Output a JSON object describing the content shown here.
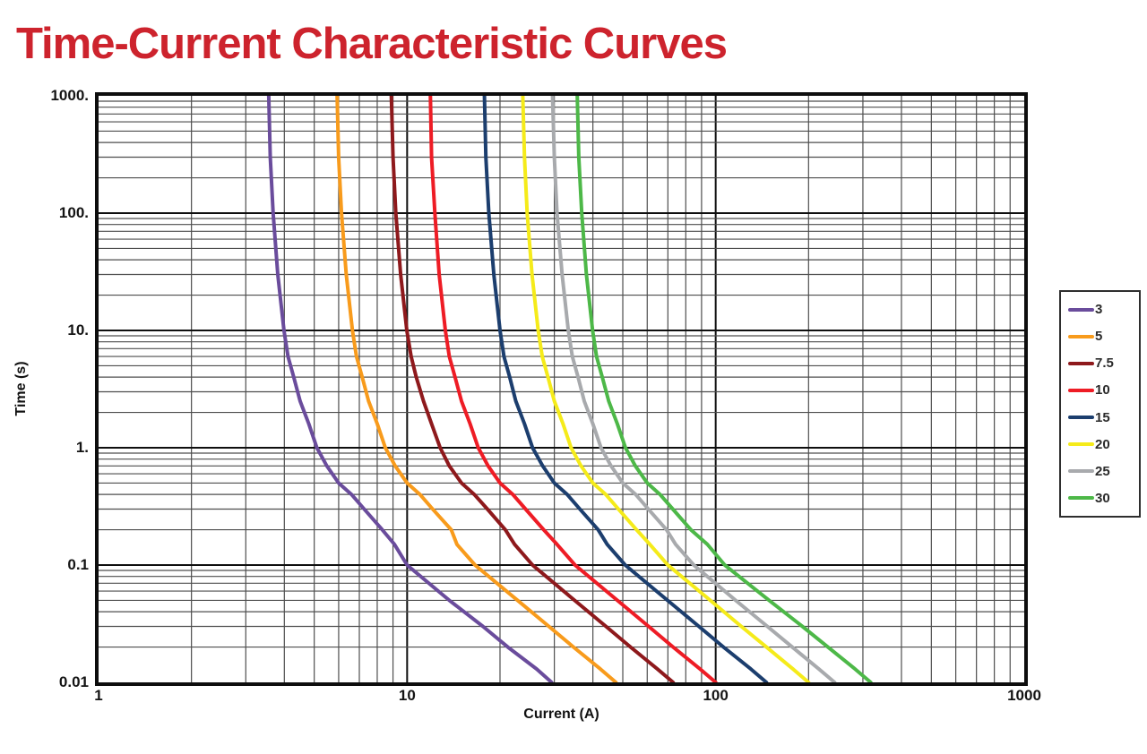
{
  "title": "Time-Current Characteristic Curves",
  "title_color": "#cd232d",
  "chart_data": {
    "type": "line",
    "title": "Time-Current Characteristic Curves",
    "xlabel": "Current (A)",
    "ylabel": "Time (s)",
    "x_scale": "log",
    "y_scale": "log",
    "xlim": [
      1,
      1000
    ],
    "ylim": [
      0.01,
      1000
    ],
    "grid": "log major+minor, both axes",
    "legend_position": "right",
    "x_ticks": [
      {
        "value": 1,
        "label": "1"
      },
      {
        "value": 10,
        "label": "10"
      },
      {
        "value": 100,
        "label": "100"
      },
      {
        "value": 1000,
        "label": "1000"
      }
    ],
    "y_ticks": [
      {
        "value": 1000,
        "label": "1000."
      },
      {
        "value": 100,
        "label": "100."
      },
      {
        "value": 10,
        "label": "10."
      },
      {
        "value": 1,
        "label": "1."
      },
      {
        "value": 0.1,
        "label": "0.1"
      },
      {
        "value": 0.01,
        "label": "0.01"
      }
    ],
    "series_note": "Breaker amp ratings; points are [current_A, time_s]",
    "series": [
      {
        "name": "3",
        "rating_amps": 3,
        "color": "#6a4c9c",
        "points": [
          [
            3.56,
            1000
          ],
          [
            3.6,
            300
          ],
          [
            3.68,
            100
          ],
          [
            3.81,
            30
          ],
          [
            3.99,
            10
          ],
          [
            4.11,
            6
          ],
          [
            4.29,
            4
          ],
          [
            4.5,
            2.5
          ],
          [
            4.8,
            1.6
          ],
          [
            5.1,
            1
          ],
          [
            5.49,
            0.7
          ],
          [
            6.0,
            0.5
          ],
          [
            6.6,
            0.4
          ],
          [
            7.26,
            0.3
          ],
          [
            8.31,
            0.2
          ],
          [
            9.1,
            0.15
          ],
          [
            10.0,
            0.1
          ],
          [
            13.7,
            0.05
          ],
          [
            17.6,
            0.03
          ],
          [
            21.2,
            0.02
          ],
          [
            26.3,
            0.013
          ],
          [
            29.4,
            0.01
          ]
        ]
      },
      {
        "name": "5",
        "rating_amps": 5,
        "color": "#f89b1c",
        "points": [
          [
            5.93,
            1000
          ],
          [
            6.0,
            300
          ],
          [
            6.13,
            100
          ],
          [
            6.35,
            30
          ],
          [
            6.65,
            10
          ],
          [
            6.85,
            6
          ],
          [
            7.15,
            4
          ],
          [
            7.5,
            2.5
          ],
          [
            8.0,
            1.6
          ],
          [
            8.5,
            1
          ],
          [
            9.15,
            0.7
          ],
          [
            10.0,
            0.5
          ],
          [
            11.0,
            0.4
          ],
          [
            12.1,
            0.3
          ],
          [
            13.9,
            0.2
          ],
          [
            14.5,
            0.15
          ],
          [
            16.6,
            0.1
          ],
          [
            22.8,
            0.05
          ],
          [
            28.8,
            0.03
          ],
          [
            34.6,
            0.02
          ],
          [
            42.3,
            0.013
          ],
          [
            47.5,
            0.01
          ]
        ]
      },
      {
        "name": "7.5",
        "rating_amps": 7.5,
        "color": "#8e191c",
        "points": [
          [
            8.89,
            1000
          ],
          [
            9.0,
            300
          ],
          [
            9.19,
            100
          ],
          [
            9.53,
            30
          ],
          [
            9.98,
            10
          ],
          [
            10.3,
            6
          ],
          [
            10.7,
            4
          ],
          [
            11.3,
            2.5
          ],
          [
            12.0,
            1.6
          ],
          [
            12.8,
            1
          ],
          [
            13.7,
            0.7
          ],
          [
            15.0,
            0.5
          ],
          [
            16.5,
            0.4
          ],
          [
            18.2,
            0.3
          ],
          [
            20.8,
            0.2
          ],
          [
            22.3,
            0.15
          ],
          [
            25.5,
            0.1
          ],
          [
            34.9,
            0.05
          ],
          [
            44.1,
            0.03
          ],
          [
            53.0,
            0.02
          ],
          [
            64.7,
            0.013
          ],
          [
            72.8,
            0.01
          ]
        ]
      },
      {
        "name": "10",
        "rating_amps": 10,
        "color": "#ee1c25",
        "points": [
          [
            11.9,
            1000
          ],
          [
            12.0,
            300
          ],
          [
            12.3,
            100
          ],
          [
            12.7,
            30
          ],
          [
            13.3,
            10
          ],
          [
            13.7,
            6
          ],
          [
            14.3,
            4
          ],
          [
            15.0,
            2.5
          ],
          [
            16.0,
            1.6
          ],
          [
            17.0,
            1
          ],
          [
            18.3,
            0.7
          ],
          [
            20.0,
            0.5
          ],
          [
            22.0,
            0.4
          ],
          [
            24.2,
            0.3
          ],
          [
            27.7,
            0.2
          ],
          [
            30.6,
            0.15
          ],
          [
            35.0,
            0.1
          ],
          [
            48.0,
            0.05
          ],
          [
            60.6,
            0.03
          ],
          [
            72.8,
            0.02
          ],
          [
            89.0,
            0.013
          ],
          [
            100,
            0.01
          ]
        ]
      },
      {
        "name": "15",
        "rating_amps": 15,
        "color": "#1c3e6e",
        "points": [
          [
            17.8,
            1000
          ],
          [
            18.0,
            300
          ],
          [
            18.4,
            100
          ],
          [
            19.1,
            30
          ],
          [
            20.0,
            10
          ],
          [
            20.6,
            6
          ],
          [
            21.5,
            4
          ],
          [
            22.5,
            2.5
          ],
          [
            24.0,
            1.6
          ],
          [
            25.5,
            1
          ],
          [
            27.5,
            0.7
          ],
          [
            30.0,
            0.5
          ],
          [
            33.0,
            0.4
          ],
          [
            36.3,
            0.3
          ],
          [
            41.6,
            0.2
          ],
          [
            44.5,
            0.15
          ],
          [
            50.9,
            0.1
          ],
          [
            69.8,
            0.05
          ],
          [
            88.2,
            0.03
          ],
          [
            106,
            0.02
          ],
          [
            130,
            0.013
          ],
          [
            146,
            0.01
          ]
        ]
      },
      {
        "name": "20",
        "rating_amps": 20,
        "color": "#f5eb1a",
        "points": [
          [
            23.7,
            1000
          ],
          [
            24.0,
            300
          ],
          [
            24.5,
            100
          ],
          [
            25.4,
            30
          ],
          [
            26.6,
            10
          ],
          [
            27.4,
            6
          ],
          [
            28.6,
            4
          ],
          [
            30.0,
            2.5
          ],
          [
            32.0,
            1.6
          ],
          [
            34.0,
            1
          ],
          [
            36.6,
            0.7
          ],
          [
            40.0,
            0.5
          ],
          [
            44.0,
            0.4
          ],
          [
            48.4,
            0.3
          ],
          [
            55.4,
            0.2
          ],
          [
            61.2,
            0.15
          ],
          [
            70.0,
            0.1
          ],
          [
            96.0,
            0.05
          ],
          [
            121,
            0.03
          ],
          [
            146,
            0.02
          ],
          [
            178,
            0.013
          ],
          [
            200,
            0.01
          ]
        ]
      },
      {
        "name": "25",
        "rating_amps": 25,
        "color": "#a8aaad",
        "points": [
          [
            29.6,
            1000
          ],
          [
            30.0,
            300
          ],
          [
            30.6,
            100
          ],
          [
            31.8,
            30
          ],
          [
            33.3,
            10
          ],
          [
            34.3,
            6
          ],
          [
            35.8,
            4
          ],
          [
            37.5,
            2.5
          ],
          [
            40.0,
            1.6
          ],
          [
            42.5,
            1
          ],
          [
            45.8,
            0.7
          ],
          [
            50.0,
            0.5
          ],
          [
            55.0,
            0.4
          ],
          [
            60.5,
            0.3
          ],
          [
            69.3,
            0.2
          ],
          [
            74.2,
            0.15
          ],
          [
            84.9,
            0.1
          ],
          [
            116,
            0.05
          ],
          [
            147,
            0.03
          ],
          [
            177,
            0.02
          ],
          [
            216,
            0.013
          ],
          [
            243,
            0.01
          ]
        ]
      },
      {
        "name": "30",
        "rating_amps": 30,
        "color": "#4db848",
        "points": [
          [
            35.6,
            1000
          ],
          [
            36.0,
            300
          ],
          [
            36.8,
            100
          ],
          [
            38.1,
            30
          ],
          [
            39.9,
            10
          ],
          [
            41.1,
            6
          ],
          [
            42.9,
            4
          ],
          [
            45.0,
            2.5
          ],
          [
            48.0,
            1.6
          ],
          [
            51.0,
            1
          ],
          [
            54.9,
            0.7
          ],
          [
            60.0,
            0.5
          ],
          [
            66.0,
            0.4
          ],
          [
            72.6,
            0.3
          ],
          [
            83.1,
            0.2
          ],
          [
            94.0,
            0.15
          ],
          [
            107,
            0.1
          ],
          [
            149,
            0.05
          ],
          [
            191,
            0.03
          ],
          [
            231,
            0.02
          ],
          [
            283,
            0.013
          ],
          [
            318,
            0.01
          ]
        ]
      }
    ]
  }
}
